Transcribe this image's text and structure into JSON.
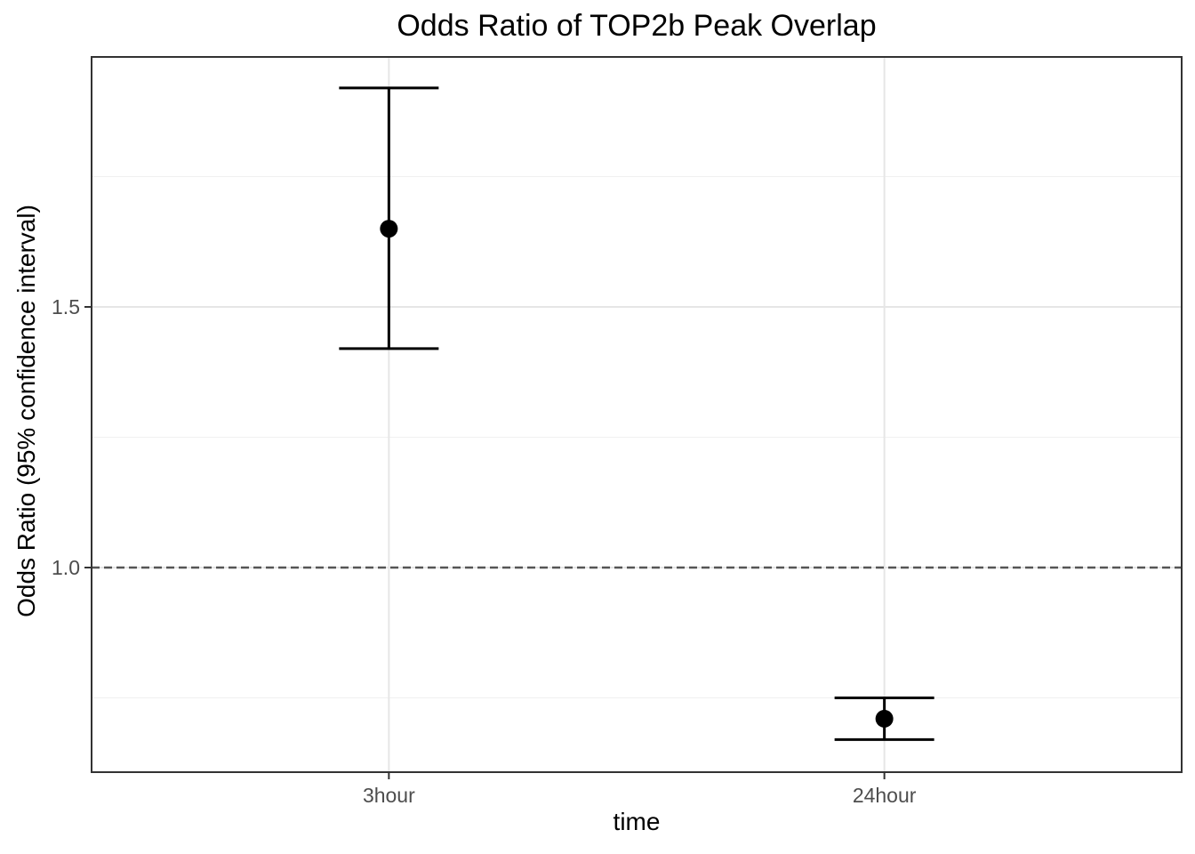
{
  "title": "Odds Ratio of TOP2b Peak Overlap",
  "chart_data": {
    "type": "scatter",
    "subtype": "point-estimate-with-error-bars",
    "title": "Odds Ratio of TOP2b Peak Overlap",
    "xlabel": "time",
    "ylabel": "Odds Ratio (95% confidence interval)",
    "categories": [
      "3hour",
      "24hour"
    ],
    "points": [
      {
        "category": "3hour",
        "odds_ratio": 1.65,
        "ci_lower": 1.42,
        "ci_upper": 1.92
      },
      {
        "category": "24hour",
        "odds_ratio": 0.71,
        "ci_lower": 0.67,
        "ci_upper": 0.75
      }
    ],
    "reference_line": {
      "y": 1.0,
      "style": "dashed"
    },
    "y_axis": {
      "ylim": [
        0.6075,
        1.9795
      ],
      "major_ticks": [
        1.0,
        1.5
      ],
      "major_tick_labels": [
        "1.0",
        "1.5"
      ],
      "minor_ticks": [
        0.75,
        1.25,
        1.75
      ]
    },
    "grid": "major+minor",
    "legend": false
  },
  "colors": {
    "point": "#000000",
    "error_bar": "#000000",
    "reference_line": "#555555",
    "grid_major": "#e6e6e6",
    "grid_minor": "#f0f0f0",
    "panel_border": "#333333",
    "tick_mark": "#333333",
    "tick_label": "#4d4d4d",
    "title_text": "#000000",
    "background": "#ffffff"
  }
}
